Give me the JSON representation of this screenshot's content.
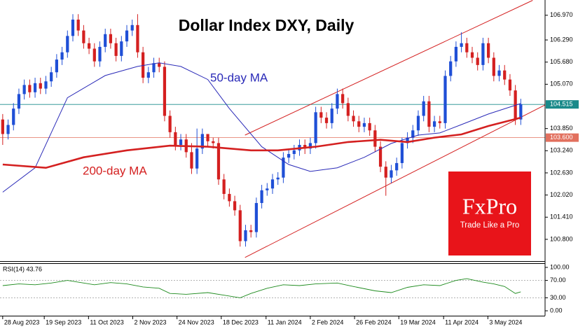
{
  "chart_data": [
    {
      "type": "candlestick",
      "title": "Dollar Index DXY, Daily",
      "xlim": [
        -0.5,
        100.5
      ],
      "xticks": [
        {
          "value": 0,
          "label": "28 Aug 2023"
        },
        {
          "value": 7.7,
          "label": "19 Sep 2023"
        },
        {
          "value": 15.9,
          "label": "11 Oct 2023"
        },
        {
          "value": 24.1,
          "label": "2 Nov 2023"
        },
        {
          "value": 32.3,
          "label": "24 Nov 2023"
        },
        {
          "value": 40.5,
          "label": "18 Dec 2023"
        },
        {
          "value": 48.8,
          "label": "11 Jan 2024"
        },
        {
          "value": 57,
          "label": "2 Feb 2024"
        },
        {
          "value": 65.2,
          "label": "26 Feb 2024"
        },
        {
          "value": 73.4,
          "label": "19 Mar 2024"
        },
        {
          "value": 81.7,
          "label": "11 Apr 2024"
        },
        {
          "value": 89.9,
          "label": "3 May 2024"
        }
      ],
      "ylim": [
        100.22,
        107.39
      ],
      "yticks": [
        {
          "value": 106.97,
          "label": "106.970"
        },
        {
          "value": 106.29,
          "label": "106.290"
        },
        {
          "value": 105.68,
          "label": "105.680"
        },
        {
          "value": 105.07,
          "label": "105.070"
        },
        {
          "value": 103.85,
          "label": "103.850"
        },
        {
          "value": 103.24,
          "label": "103.240"
        },
        {
          "value": 102.63,
          "label": "102.630"
        },
        {
          "value": 102.02,
          "label": "102.020"
        },
        {
          "value": 101.41,
          "label": "101.410"
        },
        {
          "value": 100.8,
          "label": "100.800"
        }
      ],
      "up_color": "#1f4fd6",
      "down_color": "#d42020",
      "candles": {
        "open": [
          104.1,
          103.7,
          103.95,
          104.4,
          104.8,
          105.05,
          104.85,
          105.1,
          104.95,
          105.15,
          105.4,
          105.75,
          105.95,
          106.4,
          106.85,
          106.55,
          106.2,
          106.05,
          105.7,
          106.1,
          106.45,
          106.2,
          105.85,
          106.25,
          106.55,
          106.7,
          105.95,
          105.25,
          105.4,
          105.65,
          105.55,
          104.2,
          103.75,
          103.4,
          103.55,
          103.2,
          102.75,
          103.3,
          103.7,
          103.5,
          103.45,
          102.45,
          102.05,
          101.85,
          101.6,
          100.75,
          101.05,
          101.0,
          101.8,
          102.15,
          102.2,
          102.45,
          102.5,
          103.05,
          103.15,
          103.25,
          103.4,
          103.3,
          103.45,
          104.3,
          104.15,
          104.0,
          104.4,
          104.8,
          104.55,
          104.2,
          104.05,
          103.9,
          104.0,
          103.8,
          103.35,
          102.8,
          102.5,
          102.7,
          102.9,
          103.45,
          103.6,
          103.8,
          104.2,
          104.6,
          103.9,
          104.05,
          104.0,
          105.3,
          105.7,
          106.1,
          106.2,
          105.95,
          105.8,
          105.6,
          106.2,
          105.8,
          105.3,
          105.45,
          105.2,
          104.9,
          104.1
        ],
        "high": [
          104.25,
          104.1,
          104.55,
          104.95,
          105.2,
          105.2,
          105.25,
          105.25,
          105.3,
          105.55,
          105.9,
          106.1,
          106.55,
          107.0,
          107.0,
          106.7,
          106.35,
          106.2,
          106.25,
          106.6,
          106.6,
          106.35,
          106.4,
          106.7,
          106.85,
          107.0,
          106.1,
          105.55,
          105.8,
          105.8,
          105.7,
          104.35,
          103.9,
          103.7,
          103.7,
          103.45,
          103.85,
          103.85,
          103.65,
          103.6,
          103.6,
          102.6,
          102.2,
          102.0,
          101.75,
          101.2,
          101.2,
          101.95,
          102.3,
          102.35,
          102.6,
          102.65,
          103.2,
          103.3,
          103.4,
          103.55,
          103.55,
          103.6,
          104.45,
          104.45,
          104.3,
          104.55,
          104.95,
          104.95,
          104.7,
          104.35,
          104.2,
          104.15,
          104.15,
          103.95,
          103.5,
          102.95,
          102.85,
          103.05,
          103.6,
          103.75,
          103.95,
          104.35,
          104.75,
          104.75,
          104.2,
          104.2,
          105.45,
          105.85,
          106.25,
          106.5,
          106.35,
          106.1,
          105.95,
          106.35,
          106.35,
          105.95,
          105.6,
          105.6,
          105.35,
          105.05,
          104.67
        ],
        "low": [
          103.4,
          103.55,
          103.8,
          104.25,
          104.65,
          104.7,
          104.7,
          104.8,
          104.8,
          105.0,
          105.25,
          105.6,
          105.8,
          106.25,
          106.4,
          106.05,
          105.9,
          105.55,
          105.55,
          105.95,
          106.05,
          105.7,
          105.7,
          106.1,
          106.4,
          105.8,
          105.1,
          105.1,
          105.25,
          105.4,
          104.05,
          103.6,
          103.25,
          103.25,
          103.05,
          102.6,
          102.6,
          103.15,
          103.35,
          103.3,
          102.3,
          101.9,
          101.7,
          101.45,
          100.6,
          100.6,
          100.85,
          100.85,
          101.65,
          102.0,
          102.05,
          102.3,
          102.35,
          102.9,
          103.0,
          103.1,
          103.15,
          103.15,
          103.3,
          104.0,
          103.85,
          103.85,
          104.25,
          104.4,
          104.05,
          103.9,
          103.75,
          103.75,
          103.65,
          103.2,
          102.65,
          102.0,
          102.35,
          102.55,
          102.75,
          103.3,
          103.45,
          103.65,
          104.05,
          103.75,
          103.75,
          103.85,
          103.85,
          105.15,
          105.55,
          105.95,
          105.8,
          105.65,
          105.45,
          105.45,
          105.65,
          105.15,
          105.15,
          105.05,
          104.75,
          103.95,
          103.95
        ],
        "close": [
          103.7,
          103.95,
          104.4,
          104.8,
          105.05,
          104.85,
          105.1,
          104.95,
          105.15,
          105.4,
          105.75,
          105.95,
          106.4,
          106.85,
          106.55,
          106.2,
          106.05,
          105.7,
          106.1,
          106.45,
          106.2,
          105.85,
          106.25,
          106.55,
          106.7,
          105.95,
          105.25,
          105.4,
          105.65,
          105.55,
          104.2,
          103.75,
          103.4,
          103.55,
          103.2,
          102.75,
          103.3,
          103.7,
          103.5,
          103.45,
          102.45,
          102.05,
          101.85,
          101.6,
          100.75,
          101.05,
          101.0,
          101.8,
          102.15,
          102.2,
          102.45,
          102.5,
          103.05,
          103.15,
          103.25,
          103.4,
          103.3,
          103.45,
          104.3,
          104.15,
          104.0,
          104.4,
          104.8,
          104.55,
          104.2,
          104.05,
          103.9,
          104.0,
          103.8,
          103.35,
          102.8,
          102.5,
          102.7,
          102.9,
          103.45,
          103.6,
          103.8,
          104.2,
          104.6,
          103.9,
          104.05,
          104.0,
          105.3,
          105.7,
          106.1,
          106.2,
          105.95,
          105.8,
          105.6,
          106.2,
          105.8,
          105.3,
          105.45,
          105.2,
          104.9,
          104.1,
          104.52
        ]
      },
      "series": [
        {
          "name": "50-day MA",
          "color": "#2a2ab8",
          "x": [
            0,
            6,
            12,
            19,
            25,
            29,
            33,
            38,
            42,
            48,
            53,
            57,
            62,
            67,
            72,
            77,
            81,
            85,
            90,
            96
          ],
          "values": [
            102.1,
            102.77,
            104.7,
            105.31,
            105.56,
            105.66,
            105.56,
            105.2,
            104.4,
            103.35,
            102.86,
            102.67,
            102.77,
            103.06,
            103.44,
            103.67,
            103.73,
            103.96,
            104.25,
            104.54
          ]
        },
        {
          "name": "200-day MA",
          "color": "#d42020",
          "x": [
            0,
            8,
            15,
            23,
            31,
            38,
            46,
            51,
            58,
            64,
            70,
            75,
            80,
            85,
            90,
            96
          ],
          "values": [
            102.86,
            102.77,
            103.06,
            103.25,
            103.38,
            103.35,
            103.25,
            103.25,
            103.35,
            103.48,
            103.54,
            103.48,
            103.6,
            103.69,
            103.92,
            104.15
          ]
        }
      ],
      "channel": {
        "color": "#d42020",
        "lines": [
          {
            "x": [
              44.9,
              98.2
            ],
            "values": [
              103.67,
              107.38
            ]
          },
          {
            "x": [
              44.9,
              100.5
            ],
            "values": [
              100.3,
              104.5
            ]
          }
        ]
      },
      "price_lines": [
        {
          "value": 104.515,
          "label": "104.515",
          "color": "#1a8a8a"
        },
        {
          "value": 103.6,
          "label": "103.600",
          "color": "#e2705e"
        }
      ]
    },
    {
      "type": "line",
      "title": "RSI(14) 43.76",
      "ylim": [
        0,
        100
      ],
      "yticks": [
        {
          "value": 100,
          "label": "100.00"
        },
        {
          "value": 70,
          "label": "70.00"
        },
        {
          "value": 30,
          "label": "30.00"
        },
        {
          "value": 0,
          "label": "0.00"
        }
      ],
      "series": [
        {
          "color": "#1c8a1c",
          "x": [
            0,
            3,
            6,
            9,
            12,
            14,
            17,
            20,
            23,
            26,
            29,
            31,
            34,
            38,
            41,
            44,
            46,
            49,
            52,
            55,
            58,
            62,
            65,
            69,
            72,
            75,
            78,
            81,
            84,
            86,
            89,
            91,
            93,
            95,
            96
          ],
          "values": [
            58,
            62,
            60,
            64,
            70,
            66,
            60,
            65,
            62,
            55,
            52,
            40,
            38,
            42,
            36,
            30,
            40,
            52,
            60,
            58,
            62,
            64,
            56,
            46,
            42,
            54,
            60,
            58,
            70,
            74,
            66,
            62,
            56,
            40,
            43.76
          ]
        }
      ]
    }
  ],
  "logo": {
    "brand": "FxPro",
    "tagline": "Trade Like a Pro"
  }
}
